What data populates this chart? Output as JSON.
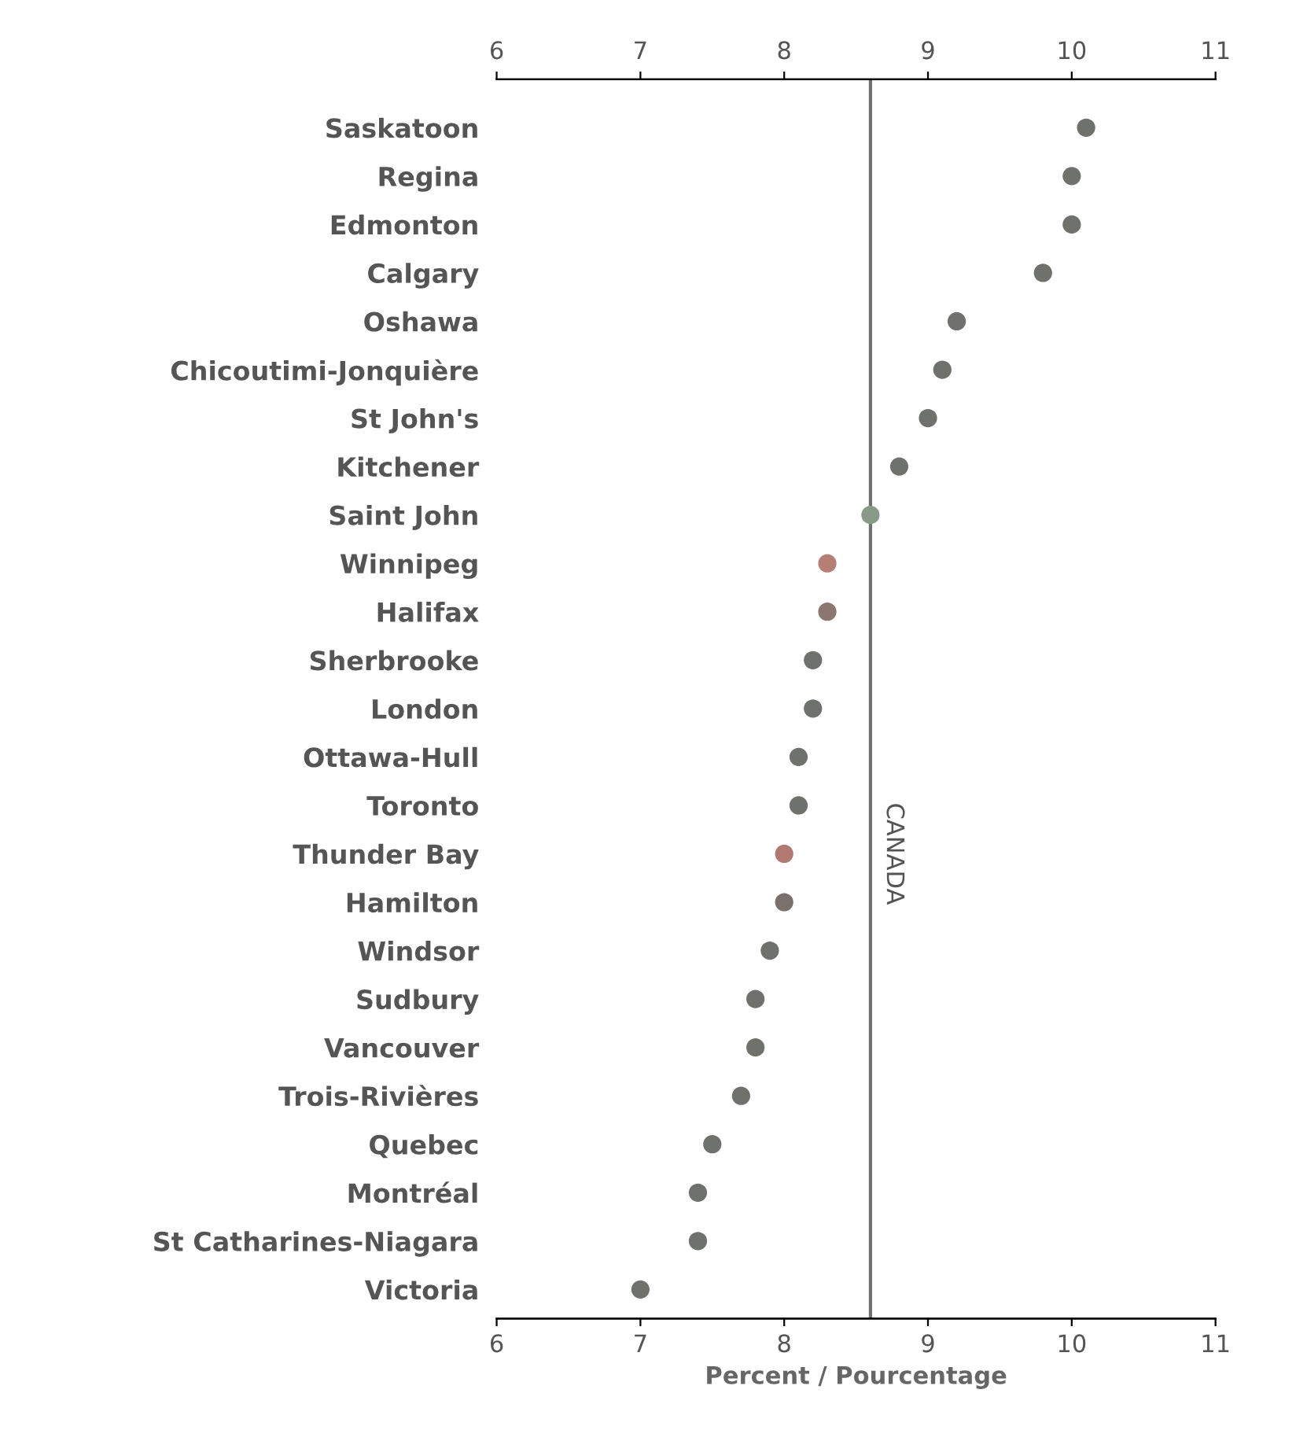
{
  "chart_data": {
    "type": "scatter",
    "orientation": "horizontal",
    "xlabel": "Percent / Pourcentage",
    "categories": [
      "Saskatoon",
      "Regina",
      "Edmonton",
      "Calgary",
      "Oshawa",
      "Chicoutimi-Jonquière",
      "St John's",
      "Kitchener",
      "Saint John",
      "Winnipeg",
      "Halifax",
      "Sherbrooke",
      "London",
      "Ottawa-Hull",
      "Toronto",
      "Thunder Bay",
      "Hamilton",
      "Windsor",
      "Sudbury",
      "Vancouver",
      "Trois-Rivières",
      "Quebec",
      "Montréal",
      "St Catharines-Niagara",
      "Victoria"
    ],
    "values": [
      10.1,
      10.0,
      10.0,
      9.8,
      9.2,
      9.1,
      9.0,
      8.8,
      8.6,
      8.3,
      8.3,
      8.2,
      8.2,
      8.1,
      8.1,
      8.0,
      8.0,
      7.9,
      7.8,
      7.8,
      7.7,
      7.5,
      7.4,
      7.4,
      7.0
    ],
    "colors": [
      "#6e716c",
      "#6e716c",
      "#6e716c",
      "#6e716c",
      "#6e716c",
      "#6e716c",
      "#6e716c",
      "#6e716c",
      "#8a9a88",
      "#b57f76",
      "#8c7670",
      "#6e716c",
      "#6e716c",
      "#6e716c",
      "#6e716c",
      "#b07a72",
      "#7a716c",
      "#6e716c",
      "#6e716c",
      "#6e716c",
      "#6e716c",
      "#6e716c",
      "#6e716c",
      "#6e716c",
      "#6e716c"
    ],
    "marker": "circle",
    "xlim": [
      6,
      11
    ],
    "xticks": [
      6,
      7,
      8,
      9,
      10,
      11
    ],
    "x2lim": [
      6,
      11
    ],
    "x2ticks": [
      6,
      7,
      8,
      9,
      10,
      11
    ],
    "ref_lines": [
      {
        "axis": "x",
        "value": 8.6,
        "label": "CANADA",
        "color": "#6e716c"
      }
    ],
    "grid": false
  }
}
